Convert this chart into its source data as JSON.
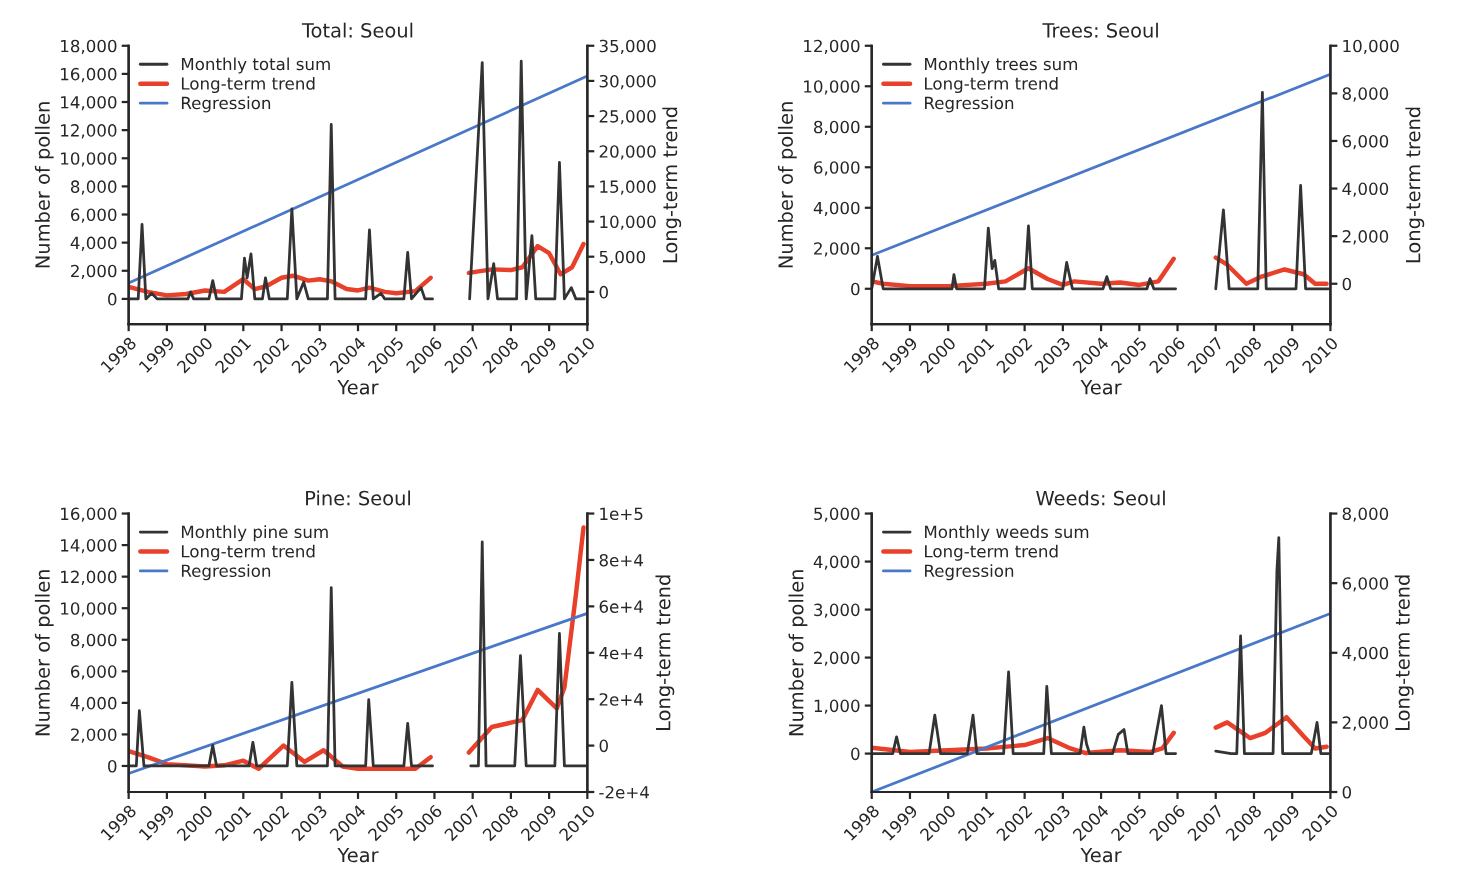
{
  "chart_data": [
    {
      "type": "line",
      "title": "Total: Seoul",
      "xlabel": "Year",
      "ylabel": "Number of pollen",
      "y2label": "Long-term trend",
      "legend": "top left",
      "grid": false,
      "xlim": [
        1998,
        2010
      ],
      "xticks": [
        1998,
        1999,
        2000,
        2001,
        2002,
        2003,
        2004,
        2005,
        2006,
        2007,
        2008,
        2009,
        2010
      ],
      "ylim": [
        -1800,
        18000
      ],
      "yticks": [
        0,
        {
          "value": 2000,
          "label": "2,000"
        },
        {
          "value": 4000,
          "label": "4,000"
        },
        {
          "value": 6000,
          "label": "6,000"
        },
        {
          "value": 8000,
          "label": "8,000"
        },
        {
          "value": 10000,
          "label": "10,000"
        },
        {
          "value": 12000,
          "label": "12,000"
        },
        {
          "value": 14000,
          "label": "14,000"
        },
        {
          "value": 16000,
          "label": "16,000"
        },
        {
          "value": 18000,
          "label": "18,000"
        }
      ],
      "y2lim": [
        -4600,
        35000
      ],
      "y2ticks": [
        0,
        {
          "value": 5000,
          "label": "5,000"
        },
        {
          "value": 10000,
          "label": "10,000"
        },
        {
          "value": 15000,
          "label": "15,000"
        },
        {
          "value": 20000,
          "label": "20,000"
        },
        {
          "value": 25000,
          "label": "25,000"
        },
        {
          "value": 30000,
          "label": "30,000"
        },
        {
          "value": 35000,
          "label": "35,000"
        }
      ],
      "series": [
        {
          "name": "Monthly total sum",
          "color": "#333333",
          "x": [
            1998.0,
            1998.25,
            1998.35,
            1998.45,
            1998.6,
            1998.75,
            1999.55,
            1999.62,
            1999.7,
            2000.1,
            2000.2,
            2000.3,
            2000.95,
            2001.03,
            2001.1,
            2001.2,
            2001.3,
            2001.5,
            2001.58,
            2001.68,
            2002.15,
            2002.27,
            2002.4,
            2002.58,
            2002.7,
            2003.2,
            2003.3,
            2003.4,
            2004.2,
            2004.3,
            2004.4,
            2004.6,
            2004.7,
            2005.2,
            2005.3,
            2005.4,
            2005.65,
            2005.75,
            2005.95,
            2006.5,
            2006.92,
            2007.25,
            2007.4,
            2007.55,
            2007.65,
            2008.15,
            2008.27,
            2008.4,
            2008.55,
            2008.65,
            2009.15,
            2009.27,
            2009.4,
            2009.58,
            2009.7,
            2009.92
          ],
          "values": [
            0,
            0,
            5300,
            0,
            400,
            0,
            0,
            500,
            0,
            0,
            1300,
            0,
            0,
            2900,
            1500,
            3200,
            0,
            0,
            1500,
            0,
            0,
            6400,
            0,
            1200,
            0,
            0,
            12400,
            0,
            0,
            4900,
            0,
            400,
            0,
            0,
            3300,
            0,
            800,
            0,
            0,
            null,
            0,
            16800,
            0,
            2500,
            0,
            0,
            16900,
            0,
            4500,
            0,
            0,
            9700,
            0,
            800,
            0,
            0
          ]
        },
        {
          "name": "Long-term trend",
          "color": "#e8402a",
          "axis": "y2",
          "x": [
            1998.0,
            1998.5,
            1999.0,
            1999.5,
            2000.0,
            2000.5,
            2001.0,
            2001.3,
            2001.6,
            2002.0,
            2002.3,
            2002.7,
            2003.0,
            2003.3,
            2003.7,
            2004.0,
            2004.3,
            2004.7,
            2005.0,
            2005.5,
            2005.9,
            2006.5,
            2006.9,
            2007.5,
            2008.0,
            2008.3,
            2008.7,
            2009.0,
            2009.3,
            2009.6,
            2009.9
          ],
          "values": [
            700,
            0,
            -500,
            -300,
            200,
            0,
            1800,
            400,
            800,
            2000,
            2300,
            1600,
            1800,
            1500,
            400,
            200,
            600,
            0,
            -200,
            100,
            2000,
            null,
            2700,
            3200,
            3100,
            3500,
            6500,
            5500,
            2500,
            3500,
            6800
          ]
        },
        {
          "name": "Regression",
          "color": "#4a78c8",
          "axis": "y2",
          "x": [
            1998,
            2010
          ],
          "values": [
            1250,
            30700
          ]
        }
      ]
    },
    {
      "type": "line",
      "title": "Trees: Seoul",
      "xlabel": "Year",
      "ylabel": "Number of pollen",
      "y2label": "Long-term trend",
      "legend": "top left",
      "grid": false,
      "xlim": [
        1998,
        2010
      ],
      "xticks": [
        1998,
        1999,
        2000,
        2001,
        2002,
        2003,
        2004,
        2005,
        2006,
        2007,
        2008,
        2009,
        2010
      ],
      "ylim": [
        -1750,
        12000
      ],
      "yticks": [
        0,
        {
          "value": 2000,
          "label": "2,000"
        },
        {
          "value": 4000,
          "label": "4,000"
        },
        {
          "value": 6000,
          "label": "6,000"
        },
        {
          "value": 8000,
          "label": "8,000"
        },
        {
          "value": 10000,
          "label": "10,000"
        },
        {
          "value": 12000,
          "label": "12,000"
        }
      ],
      "y2lim": [
        -1700,
        10000
      ],
      "y2ticks": [
        0,
        {
          "value": 2000,
          "label": "2,000"
        },
        {
          "value": 4000,
          "label": "4,000"
        },
        {
          "value": 6000,
          "label": "6,000"
        },
        {
          "value": 8000,
          "label": "8,000"
        },
        {
          "value": 10000,
          "label": "10,000"
        }
      ],
      "series": [
        {
          "name": "Monthly trees sum",
          "color": "#333333",
          "x": [
            1998.0,
            1998.15,
            1998.3,
            1999.0,
            2000.1,
            2000.15,
            2000.22,
            2000.95,
            2001.05,
            2001.15,
            2001.22,
            2001.32,
            2002.0,
            2002.1,
            2002.2,
            2003.0,
            2003.1,
            2003.25,
            2004.05,
            2004.15,
            2004.25,
            2005.2,
            2005.28,
            2005.38,
            2005.95,
            2006.5,
            2007.0,
            2007.2,
            2007.35,
            2008.1,
            2008.22,
            2008.32,
            2009.1,
            2009.22,
            2009.35,
            2009.95
          ],
          "values": [
            0,
            1600,
            0,
            0,
            0,
            700,
            0,
            0,
            3000,
            1000,
            1400,
            0,
            0,
            3100,
            0,
            0,
            1300,
            0,
            0,
            600,
            0,
            0,
            500,
            0,
            0,
            null,
            0,
            3900,
            0,
            0,
            9700,
            0,
            0,
            5100,
            0,
            0
          ]
        },
        {
          "name": "Long-term trend",
          "color": "#e8402a",
          "axis": "y2",
          "x": [
            1998.0,
            1998.3,
            1999.0,
            2000.0,
            2001.0,
            2001.5,
            2002.1,
            2002.6,
            2003.0,
            2003.3,
            2004.0,
            2004.5,
            2005.0,
            2005.5,
            2005.9,
            2006.5,
            2007.0,
            2007.3,
            2007.8,
            2008.2,
            2008.8,
            2009.3,
            2009.6,
            2009.9
          ],
          "values": [
            100,
            0,
            -100,
            -100,
            0,
            100,
            650,
            200,
            -50,
            100,
            0,
            50,
            -50,
            100,
            1050,
            null,
            1100,
            800,
            0,
            300,
            600,
            400,
            0,
            0
          ]
        },
        {
          "name": "Regression",
          "color": "#4a78c8",
          "axis": "y2",
          "x": [
            1998,
            2010
          ],
          "values": [
            1200,
            8800
          ]
        }
      ]
    },
    {
      "type": "line",
      "title": "Pine: Seoul",
      "xlabel": "Year",
      "ylabel": "Number of pollen",
      "y2label": "Long-term trend",
      "legend": "top left",
      "grid": false,
      "xlim": [
        1998,
        2010
      ],
      "xticks": [
        1998,
        1999,
        2000,
        2001,
        2002,
        2003,
        2004,
        2005,
        2006,
        2007,
        2008,
        2009,
        2010
      ],
      "ylim": [
        -1650,
        16000
      ],
      "yticks": [
        0,
        {
          "value": 2000,
          "label": "2,000"
        },
        {
          "value": 4000,
          "label": "4,000"
        },
        {
          "value": 6000,
          "label": "6,000"
        },
        {
          "value": 8000,
          "label": "8,000"
        },
        {
          "value": 10000,
          "label": "10,000"
        },
        {
          "value": 12000,
          "label": "12,000"
        },
        {
          "value": 14000,
          "label": "14,000"
        },
        {
          "value": 16000,
          "label": "16,000"
        }
      ],
      "y2lim": [
        -20000,
        100000
      ],
      "y2ticks": [
        {
          "value": -20000,
          "label": "-2e+4"
        },
        0,
        {
          "value": 20000,
          "label": "2e+4"
        },
        {
          "value": 40000,
          "label": "4e+4"
        },
        {
          "value": 60000,
          "label": "6e+4"
        },
        {
          "value": 80000,
          "label": "8e+4"
        },
        {
          "value": 100000,
          "label": "1e+5"
        }
      ],
      "series": [
        {
          "name": "Monthly pine sum",
          "color": "#333333",
          "x": [
            1998.0,
            1998.2,
            1998.28,
            1998.4,
            2000.1,
            2000.2,
            2000.3,
            2001.15,
            2001.25,
            2001.35,
            2002.15,
            2002.27,
            2002.4,
            2003.2,
            2003.3,
            2003.4,
            2004.2,
            2004.28,
            2004.4,
            2005.2,
            2005.3,
            2005.4,
            2005.95,
            2006.5,
            2006.95,
            2007.15,
            2007.25,
            2007.35,
            2008.1,
            2008.25,
            2008.4,
            2009.15,
            2009.27,
            2009.4,
            2009.95
          ],
          "values": [
            0,
            0,
            3500,
            0,
            0,
            1300,
            0,
            0,
            1500,
            0,
            0,
            5300,
            0,
            0,
            11300,
            0,
            0,
            4200,
            0,
            0,
            2700,
            0,
            0,
            null,
            0,
            0,
            14200,
            0,
            0,
            7000,
            0,
            0,
            8400,
            0,
            0
          ]
        },
        {
          "name": "Long-term trend",
          "color": "#e8402a",
          "axis": "y2",
          "x": [
            1998.0,
            1998.5,
            1999.0,
            2000.0,
            2000.5,
            2001.0,
            2001.4,
            2002.05,
            2002.6,
            2003.1,
            2003.6,
            2004.0,
            2005.0,
            2005.5,
            2005.9,
            2006.5,
            2006.9,
            2007.5,
            2008.3,
            2008.7,
            2009.2,
            2009.4,
            2009.7,
            2009.9
          ],
          "values": [
            -2400,
            -5000,
            -8000,
            -9000,
            -8500,
            -6500,
            -10000,
            0,
            -7000,
            -2000,
            -9000,
            -10000,
            -10000,
            -10000,
            -5000,
            null,
            -3000,
            8000,
            11000,
            24000,
            16000,
            25000,
            65000,
            94000
          ]
        },
        {
          "name": "Regression",
          "color": "#4a78c8",
          "axis": "y2",
          "x": [
            1998,
            2010
          ],
          "values": [
            -12000,
            57000
          ]
        }
      ]
    },
    {
      "type": "line",
      "title": "Weeds: Seoul",
      "xlabel": "Year",
      "ylabel": "Number of pollen",
      "y2label": "Long-term trend",
      "legend": "top left",
      "grid": false,
      "xlim": [
        1998,
        2010
      ],
      "xticks": [
        1998,
        1999,
        2000,
        2001,
        2002,
        2003,
        2004,
        2005,
        2006,
        2007,
        2008,
        2009,
        2010
      ],
      "ylim": [
        -800,
        5000
      ],
      "yticks": [
        0,
        {
          "value": 1000,
          "label": "1,000"
        },
        {
          "value": 2000,
          "label": "2,000"
        },
        {
          "value": 3000,
          "label": "3,000"
        },
        {
          "value": 4000,
          "label": "4,000"
        },
        {
          "value": 5000,
          "label": "5,000"
        }
      ],
      "y2lim": [
        0,
        8000
      ],
      "y2ticks": [
        0,
        {
          "value": 2000,
          "label": "2,000"
        },
        {
          "value": 4000,
          "label": "4,000"
        },
        {
          "value": 6000,
          "label": "6,000"
        },
        {
          "value": 8000,
          "label": "8,000"
        }
      ],
      "series": [
        {
          "name": "Monthly weeds sum",
          "color": "#333333",
          "x": [
            1998.0,
            1998.55,
            1998.65,
            1998.75,
            1999.5,
            1999.65,
            1999.8,
            2000.5,
            2000.65,
            2000.75,
            2001.45,
            2001.58,
            2001.7,
            2002.5,
            2002.58,
            2002.7,
            2003.45,
            2003.55,
            2003.62,
            2003.7,
            2004.3,
            2004.45,
            2004.6,
            2004.7,
            2005.35,
            2005.58,
            2005.7,
            2005.95,
            2006.5,
            2007.0,
            2007.4,
            2007.55,
            2007.65,
            2007.75,
            2008.5,
            2008.6,
            2008.65,
            2008.75,
            2009.5,
            2009.65,
            2009.75,
            2009.95
          ],
          "values": [
            0,
            0,
            350,
            0,
            0,
            800,
            0,
            0,
            800,
            0,
            0,
            1700,
            0,
            0,
            1400,
            0,
            0,
            550,
            200,
            0,
            0,
            400,
            500,
            0,
            0,
            1000,
            0,
            0,
            null,
            50,
            0,
            0,
            2450,
            0,
            0,
            3800,
            4500,
            0,
            0,
            650,
            0,
            0
          ]
        },
        {
          "name": "Long-term trend",
          "color": "#e8402a",
          "axis": "y2",
          "x": [
            1998.0,
            1999.0,
            2000.0,
            2001.0,
            2002.0,
            2002.6,
            2003.2,
            2003.6,
            2004.5,
            2005.3,
            2005.6,
            2005.9,
            2006.5,
            2007.0,
            2007.3,
            2007.9,
            2008.3,
            2008.85,
            2009.3,
            2009.6,
            2009.9
          ],
          "values": [
            1270,
            1150,
            1200,
            1250,
            1350,
            1550,
            1250,
            1120,
            1200,
            1150,
            1250,
            1700,
            null,
            1850,
            2000,
            1550,
            1700,
            2150,
            1600,
            1250,
            1300
          ]
        },
        {
          "name": "Regression",
          "color": "#4a78c8",
          "axis": "y2",
          "x": [
            1998,
            2010
          ],
          "values": [
            0,
            5130
          ]
        }
      ]
    }
  ]
}
